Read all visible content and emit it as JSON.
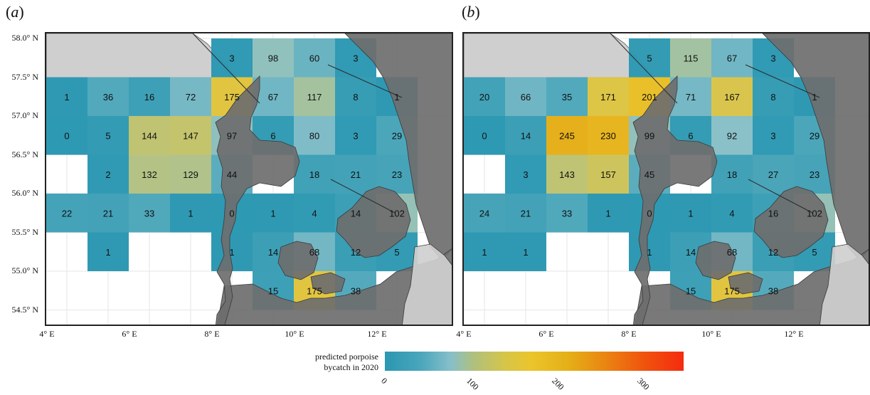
{
  "panels": [
    {
      "label_letter": "a",
      "cells": [
        {
          "lon": 8,
          "lat": 57.5,
          "value": 3
        },
        {
          "lon": 9,
          "lat": 57.5,
          "value": 98
        },
        {
          "lon": 10,
          "lat": 57.5,
          "value": 60
        },
        {
          "lon": 11,
          "lat": 57.5,
          "value": 3
        },
        {
          "lon": 4,
          "lat": 57.0,
          "value": 1
        },
        {
          "lon": 5,
          "lat": 57.0,
          "value": 36
        },
        {
          "lon": 6,
          "lat": 57.0,
          "value": 16
        },
        {
          "lon": 7,
          "lat": 57.0,
          "value": 72
        },
        {
          "lon": 8,
          "lat": 57.0,
          "value": 175
        },
        {
          "lon": 9,
          "lat": 57.0,
          "value": 67
        },
        {
          "lon": 10,
          "lat": 57.0,
          "value": 117
        },
        {
          "lon": 11,
          "lat": 57.0,
          "value": 8
        },
        {
          "lon": 12,
          "lat": 57.0,
          "value": 1
        },
        {
          "lon": 4,
          "lat": 56.5,
          "value": 0
        },
        {
          "lon": 5,
          "lat": 56.5,
          "value": 5
        },
        {
          "lon": 6,
          "lat": 56.5,
          "value": 144
        },
        {
          "lon": 7,
          "lat": 56.5,
          "value": 147
        },
        {
          "lon": 8,
          "lat": 56.5,
          "value": 97
        },
        {
          "lon": 9,
          "lat": 56.5,
          "value": 6
        },
        {
          "lon": 10,
          "lat": 56.5,
          "value": 80
        },
        {
          "lon": 11,
          "lat": 56.5,
          "value": 3
        },
        {
          "lon": 12,
          "lat": 56.5,
          "value": 29
        },
        {
          "lon": 5,
          "lat": 56.0,
          "value": 2
        },
        {
          "lon": 6,
          "lat": 56.0,
          "value": 132
        },
        {
          "lon": 7,
          "lat": 56.0,
          "value": 129
        },
        {
          "lon": 8,
          "lat": 56.0,
          "value": 44
        },
        {
          "lon": 10,
          "lat": 56.0,
          "value": 18
        },
        {
          "lon": 11,
          "lat": 56.0,
          "value": 21
        },
        {
          "lon": 12,
          "lat": 56.0,
          "value": 23
        },
        {
          "lon": 4,
          "lat": 55.5,
          "value": 22
        },
        {
          "lon": 5,
          "lat": 55.5,
          "value": 21
        },
        {
          "lon": 6,
          "lat": 55.5,
          "value": 33
        },
        {
          "lon": 7,
          "lat": 55.5,
          "value": 1
        },
        {
          "lon": 8,
          "lat": 55.5,
          "value": 0
        },
        {
          "lon": 9,
          "lat": 55.5,
          "value": 1
        },
        {
          "lon": 10,
          "lat": 55.5,
          "value": 4
        },
        {
          "lon": 11,
          "lat": 55.5,
          "value": 14
        },
        {
          "lon": 12,
          "lat": 55.5,
          "value": 102
        },
        {
          "lon": 5,
          "lat": 55.0,
          "value": 1
        },
        {
          "lon": 8,
          "lat": 55.0,
          "value": 1
        },
        {
          "lon": 9,
          "lat": 55.0,
          "value": 14
        },
        {
          "lon": 10,
          "lat": 55.0,
          "value": 68
        },
        {
          "lon": 11,
          "lat": 55.0,
          "value": 12
        },
        {
          "lon": 12,
          "lat": 55.0,
          "value": 5
        },
        {
          "lon": 9,
          "lat": 54.5,
          "value": 15
        },
        {
          "lon": 10,
          "lat": 54.5,
          "value": 175
        },
        {
          "lon": 11,
          "lat": 54.5,
          "value": 38
        }
      ]
    },
    {
      "label_letter": "b",
      "cells": [
        {
          "lon": 8,
          "lat": 57.5,
          "value": 5
        },
        {
          "lon": 9,
          "lat": 57.5,
          "value": 115
        },
        {
          "lon": 10,
          "lat": 57.5,
          "value": 67
        },
        {
          "lon": 11,
          "lat": 57.5,
          "value": 3
        },
        {
          "lon": 4,
          "lat": 57.0,
          "value": 20
        },
        {
          "lon": 5,
          "lat": 57.0,
          "value": 66
        },
        {
          "lon": 6,
          "lat": 57.0,
          "value": 35
        },
        {
          "lon": 7,
          "lat": 57.0,
          "value": 171
        },
        {
          "lon": 8,
          "lat": 57.0,
          "value": 201
        },
        {
          "lon": 9,
          "lat": 57.0,
          "value": 71
        },
        {
          "lon": 10,
          "lat": 57.0,
          "value": 167
        },
        {
          "lon": 11,
          "lat": 57.0,
          "value": 8
        },
        {
          "lon": 12,
          "lat": 57.0,
          "value": 1
        },
        {
          "lon": 4,
          "lat": 56.5,
          "value": 0
        },
        {
          "lon": 5,
          "lat": 56.5,
          "value": 14
        },
        {
          "lon": 6,
          "lat": 56.5,
          "value": 245
        },
        {
          "lon": 7,
          "lat": 56.5,
          "value": 230
        },
        {
          "lon": 8,
          "lat": 56.5,
          "value": 99
        },
        {
          "lon": 9,
          "lat": 56.5,
          "value": 6
        },
        {
          "lon": 10,
          "lat": 56.5,
          "value": 92
        },
        {
          "lon": 11,
          "lat": 56.5,
          "value": 3
        },
        {
          "lon": 12,
          "lat": 56.5,
          "value": 29
        },
        {
          "lon": 5,
          "lat": 56.0,
          "value": 3
        },
        {
          "lon": 6,
          "lat": 56.0,
          "value": 143
        },
        {
          "lon": 7,
          "lat": 56.0,
          "value": 157
        },
        {
          "lon": 8,
          "lat": 56.0,
          "value": 45
        },
        {
          "lon": 10,
          "lat": 56.0,
          "value": 18
        },
        {
          "lon": 11,
          "lat": 56.0,
          "value": 27
        },
        {
          "lon": 12,
          "lat": 56.0,
          "value": 23
        },
        {
          "lon": 4,
          "lat": 55.5,
          "value": 24
        },
        {
          "lon": 5,
          "lat": 55.5,
          "value": 21
        },
        {
          "lon": 6,
          "lat": 55.5,
          "value": 33
        },
        {
          "lon": 7,
          "lat": 55.5,
          "value": 1
        },
        {
          "lon": 8,
          "lat": 55.5,
          "value": 0
        },
        {
          "lon": 9,
          "lat": 55.5,
          "value": 1
        },
        {
          "lon": 10,
          "lat": 55.5,
          "value": 4
        },
        {
          "lon": 11,
          "lat": 55.5,
          "value": 16
        },
        {
          "lon": 12,
          "lat": 55.5,
          "value": 102
        },
        {
          "lon": 4,
          "lat": 55.0,
          "value": 1
        },
        {
          "lon": 5,
          "lat": 55.0,
          "value": 1
        },
        {
          "lon": 8,
          "lat": 55.0,
          "value": 1
        },
        {
          "lon": 9,
          "lat": 55.0,
          "value": 14
        },
        {
          "lon": 10,
          "lat": 55.0,
          "value": 68
        },
        {
          "lon": 11,
          "lat": 55.0,
          "value": 12
        },
        {
          "lon": 12,
          "lat": 55.0,
          "value": 5
        },
        {
          "lon": 9,
          "lat": 54.5,
          "value": 15
        },
        {
          "lon": 10,
          "lat": 54.5,
          "value": 175
        },
        {
          "lon": 11,
          "lat": 54.5,
          "value": 38
        }
      ]
    }
  ],
  "y_axis_labels": [
    "58.0° N",
    "57.5° N",
    "57.0° N",
    "56.5° N",
    "56.0° N",
    "55.5° N",
    "55.0° N",
    "54.5° N"
  ],
  "x_axis_labels": [
    "4° E",
    "6° E",
    "8° E",
    "10° E",
    "12° E"
  ],
  "legend": {
    "title_line1": "predicted porpoise",
    "title_line2": "bycatch in 2020",
    "tick_labels": [
      "0",
      "100",
      "200",
      "300"
    ],
    "range": [
      0,
      350
    ],
    "colors": [
      "#2a97b1",
      "#86bfc9",
      "#ebc52b",
      "#e5ae17",
      "#f42b0f"
    ]
  },
  "map_colors": {
    "land": "#6e6e6e",
    "neighbor_land": "#cfcfcf",
    "sea": "#ffffff",
    "grid": "#e6e6e6"
  }
}
